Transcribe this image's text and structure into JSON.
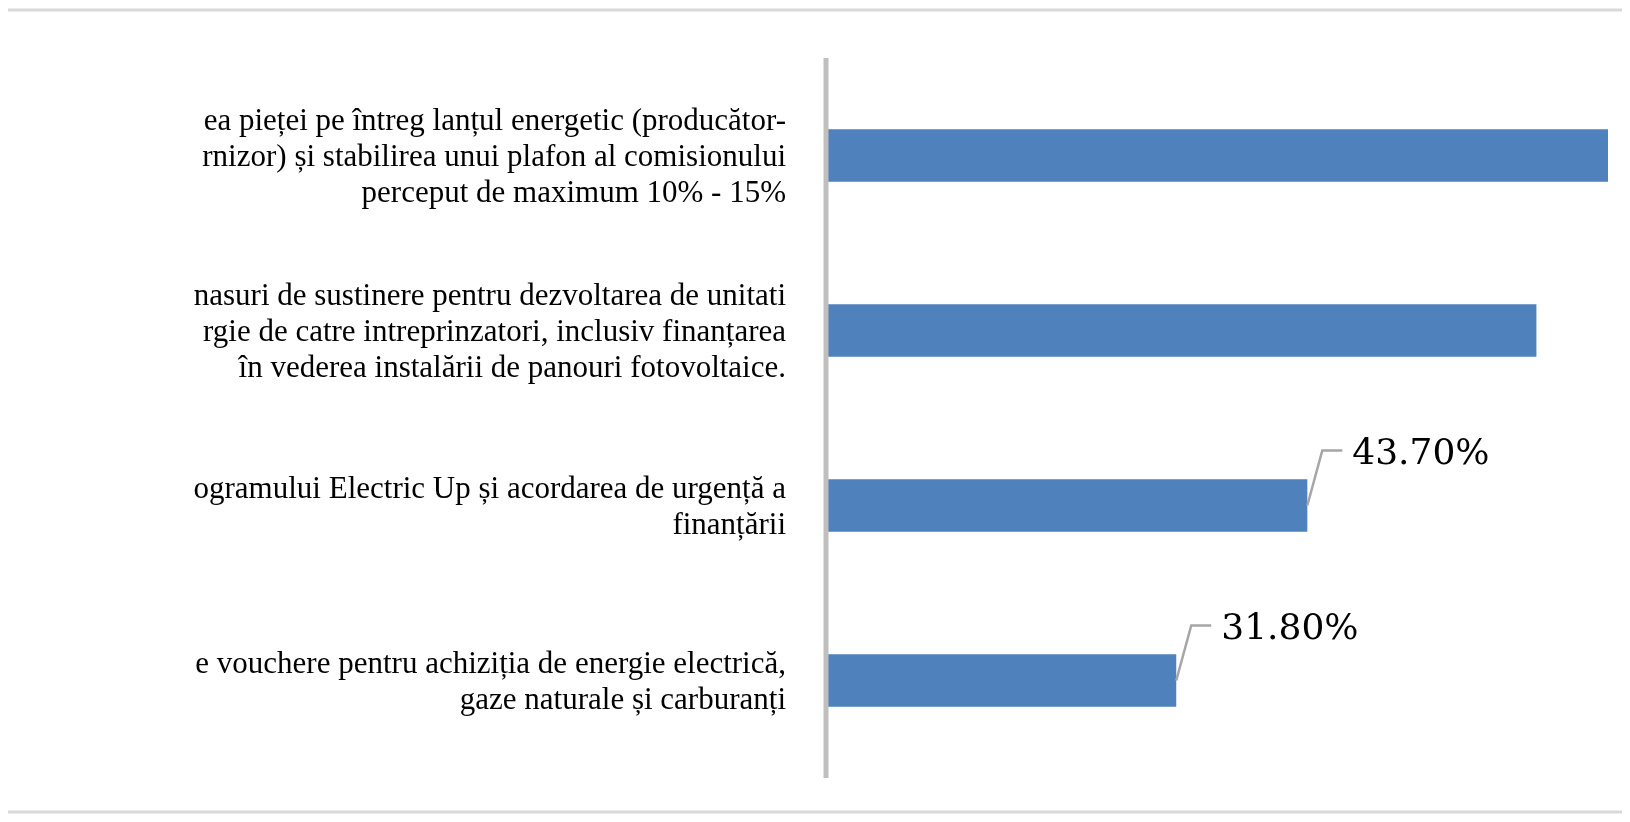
{
  "chart_data": {
    "type": "bar",
    "orientation": "horizontal",
    "relative": false,
    "categories": [
      "ea pieței pe întreg lanțul energetic (producător-\nrnizor) și stabilirea unui plafon al comisionului\nperceput de maximum 10% - 15%",
      "nasuri de sustinere pentru dezvoltarea de unitati\nrgie de catre intreprinzatori, inclusiv finanțarea\nîn vederea instalării de panouri fotovoltaice.",
      "ogramului Electric Up și acordarea de urgență a\nfinanțării",
      "e vouchere pentru achiziția de energie electrică,\ngaze naturale și carburanți"
    ],
    "values": [
      71,
      64.5,
      43.7,
      31.8
    ],
    "value_labels": [
      null,
      null,
      "43.70%",
      "31.80%"
    ],
    "color": "#4f81bd"
  }
}
